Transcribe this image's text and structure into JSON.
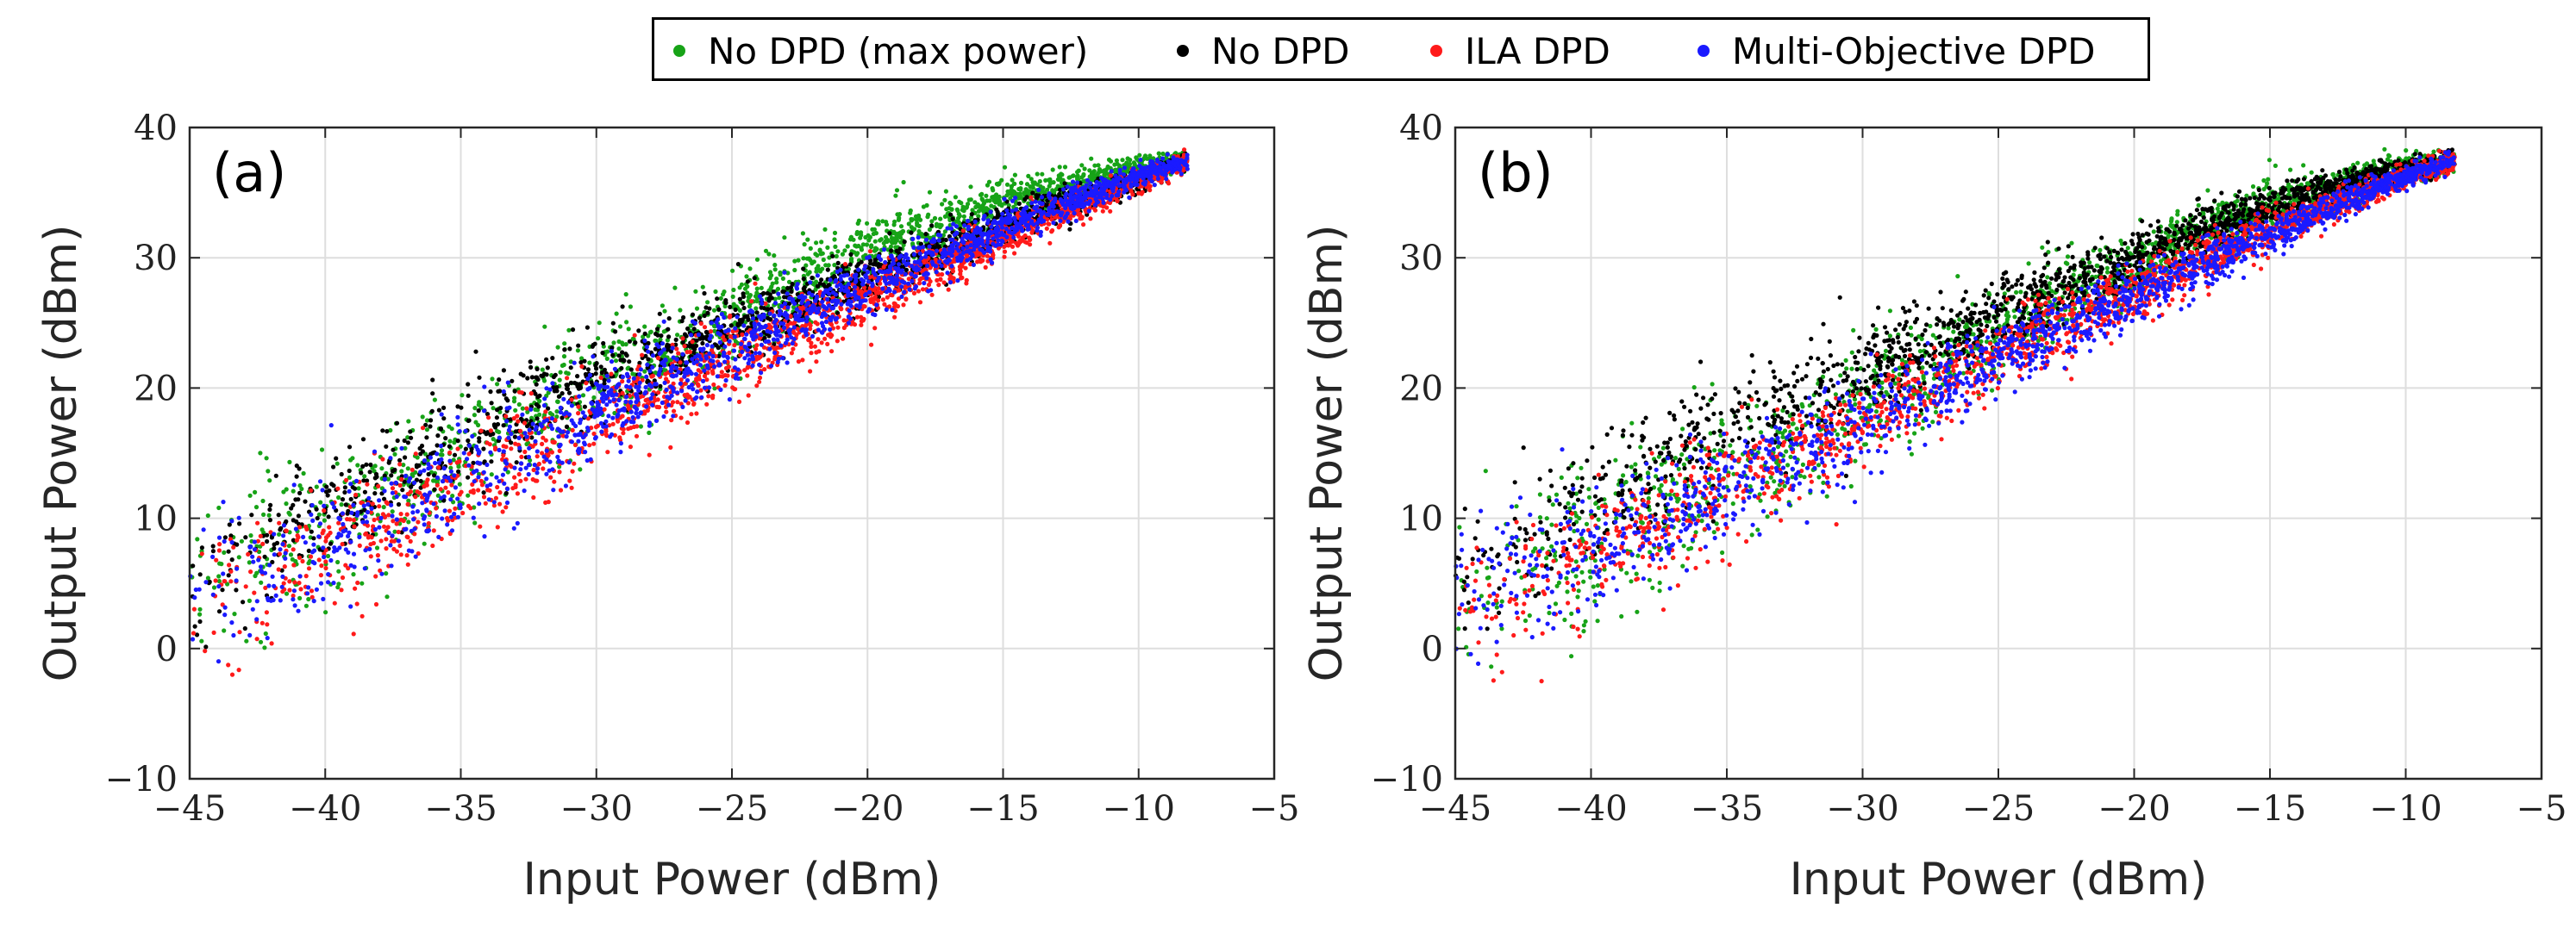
{
  "legend": {
    "items": [
      {
        "label": "No DPD (max power)",
        "color": "#17a317"
      },
      {
        "label": "No DPD",
        "color": "#000000"
      },
      {
        "label": "ILA DPD",
        "color": "#ff1a1a"
      },
      {
        "label": "Multi-Objective DPD",
        "color": "#1a1aff"
      }
    ]
  },
  "chart_data": [
    {
      "type": "scatter",
      "panel_label": "(a)",
      "xlabel": "Input Power (dBm)",
      "ylabel": "Output Power (dBm)",
      "xlim": [
        -45,
        -5
      ],
      "ylim": [
        -10,
        40
      ],
      "xticks": [
        -45,
        -40,
        -35,
        -30,
        -25,
        -20,
        -15,
        -10,
        -5
      ],
      "yticks": [
        -10,
        0,
        10,
        20,
        30,
        40
      ],
      "xtick_labels": [
        "−45",
        "−40",
        "−35",
        "−30",
        "−25",
        "−20",
        "−15",
        "−10",
        "−5"
      ],
      "ytick_labels": [
        "−10",
        "0",
        "10",
        "20",
        "30",
        "40"
      ],
      "grid": true,
      "series": [
        {
          "name": "No DPD (max power)",
          "color": "#17a317",
          "trend": [
            [
              -45,
              5
            ],
            [
              -40,
              9.5
            ],
            [
              -35,
              15
            ],
            [
              -30,
              20.5
            ],
            [
              -25,
              25.5
            ],
            [
              -20,
              30.5
            ],
            [
              -15,
              34.3
            ],
            [
              -10,
              36.9
            ],
            [
              -8.2,
              37.4
            ]
          ],
          "spread": 3.2
        },
        {
          "name": "No DPD",
          "color": "#000000",
          "trend": [
            [
              -45,
              5.5
            ],
            [
              -40,
              10.5
            ],
            [
              -35,
              16
            ],
            [
              -30,
              20.8
            ],
            [
              -25,
              24.5
            ],
            [
              -20,
              28.5
            ],
            [
              -15,
              32.5
            ],
            [
              -10,
              36
            ],
            [
              -8.2,
              37.4
            ]
          ],
          "spread": 2.4
        },
        {
          "name": "ILA DPD",
          "color": "#ff1a1a",
          "trend": [
            [
              -45,
              3.5
            ],
            [
              -40,
              7.5
            ],
            [
              -35,
              12.5
            ],
            [
              -30,
              17.5
            ],
            [
              -25,
              22.3
            ],
            [
              -20,
              27
            ],
            [
              -15,
              31.5
            ],
            [
              -10,
              35.9
            ],
            [
              -8.2,
              37.4
            ]
          ],
          "spread": 2.6
        },
        {
          "name": "Multi-Objective DPD",
          "color": "#1a1aff",
          "trend": [
            [
              -45,
              3.5
            ],
            [
              -40,
              7.8
            ],
            [
              -35,
              13
            ],
            [
              -30,
              18
            ],
            [
              -25,
              23
            ],
            [
              -20,
              27.8
            ],
            [
              -15,
              32.3
            ],
            [
              -10,
              36.3
            ],
            [
              -8.2,
              37.4
            ]
          ],
          "spread": 2.6
        }
      ]
    },
    {
      "type": "scatter",
      "panel_label": "(b)",
      "xlabel": "Input Power (dBm)",
      "ylabel": "Output Power (dBm)",
      "xlim": [
        -45,
        -5
      ],
      "ylim": [
        -10,
        40
      ],
      "xticks": [
        -45,
        -40,
        -35,
        -30,
        -25,
        -20,
        -15,
        -10,
        -5
      ],
      "yticks": [
        -10,
        0,
        10,
        20,
        30,
        40
      ],
      "xtick_labels": [
        "−45",
        "−40",
        "−35",
        "−30",
        "−25",
        "−20",
        "−15",
        "−10",
        "−5"
      ],
      "ytick_labels": [
        "−10",
        "0",
        "10",
        "20",
        "30",
        "40"
      ],
      "grid": true,
      "series": [
        {
          "name": "No DPD (max power)",
          "color": "#17a317",
          "trend": [
            [
              -45,
              4
            ],
            [
              -40,
              8
            ],
            [
              -35,
              13.5
            ],
            [
              -30,
              19
            ],
            [
              -25,
              24.5
            ],
            [
              -20,
              29.5
            ],
            [
              -15,
              34
            ],
            [
              -10,
              36.9
            ],
            [
              -8.2,
              37.4
            ]
          ],
          "spread": 3.2
        },
        {
          "name": "No DPD",
          "color": "#000000",
          "trend": [
            [
              -45,
              6
            ],
            [
              -40,
              11
            ],
            [
              -35,
              16.5
            ],
            [
              -30,
              21.5
            ],
            [
              -25,
              25.5
            ],
            [
              -20,
              30
            ],
            [
              -15,
              34
            ],
            [
              -10,
              36.8
            ],
            [
              -8.2,
              37.4
            ]
          ],
          "spread": 2.6
        },
        {
          "name": "ILA DPD",
          "color": "#ff1a1a",
          "trend": [
            [
              -45,
              3
            ],
            [
              -40,
              7.5
            ],
            [
              -35,
              12.5
            ],
            [
              -30,
              17.5
            ],
            [
              -25,
              22.5
            ],
            [
              -20,
              27.3
            ],
            [
              -15,
              32
            ],
            [
              -10,
              36.3
            ],
            [
              -8.2,
              37.4
            ]
          ],
          "spread": 2.6
        },
        {
          "name": "Multi-Objective DPD",
          "color": "#1a1aff",
          "trend": [
            [
              -45,
              3
            ],
            [
              -40,
              7.5
            ],
            [
              -35,
              12.3
            ],
            [
              -30,
              17.3
            ],
            [
              -25,
              22.3
            ],
            [
              -20,
              27.1
            ],
            [
              -15,
              31.8
            ],
            [
              -10,
              36.2
            ],
            [
              -8.2,
              37.4
            ]
          ],
          "spread": 2.5
        }
      ]
    }
  ]
}
